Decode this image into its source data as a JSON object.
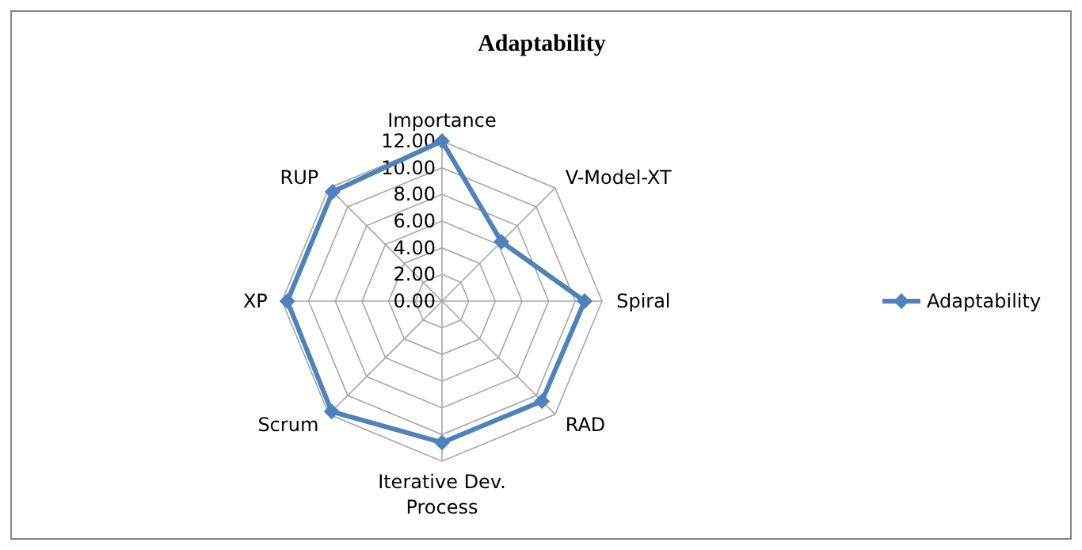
{
  "chart_data": {
    "type": "radar",
    "title": "Adaptability",
    "categories": [
      "Importance",
      "V-Model-XT",
      "Spiral",
      "RAD",
      "Iterative Dev. Process",
      "Scrum",
      "XP",
      "RUP"
    ],
    "series": [
      {
        "name": "Adaptability",
        "color": "#4f81bd",
        "values": [
          12,
          6.3,
          10.7,
          10.6,
          10.6,
          11.7,
          11.6,
          11.6
        ]
      }
    ],
    "ylim": [
      0,
      12
    ],
    "yticks": [
      {
        "value": 0,
        "label": "0.00"
      },
      {
        "value": 2,
        "label": "2.00"
      },
      {
        "value": 4,
        "label": "4.00"
      },
      {
        "value": 6,
        "label": "6.00"
      },
      {
        "value": 8,
        "label": "8.00"
      },
      {
        "value": 10,
        "label": "10.00"
      },
      {
        "value": 12,
        "label": "12.00"
      }
    ],
    "grid": true,
    "legend": "right",
    "marker": "diamond",
    "line_style": "solid"
  }
}
